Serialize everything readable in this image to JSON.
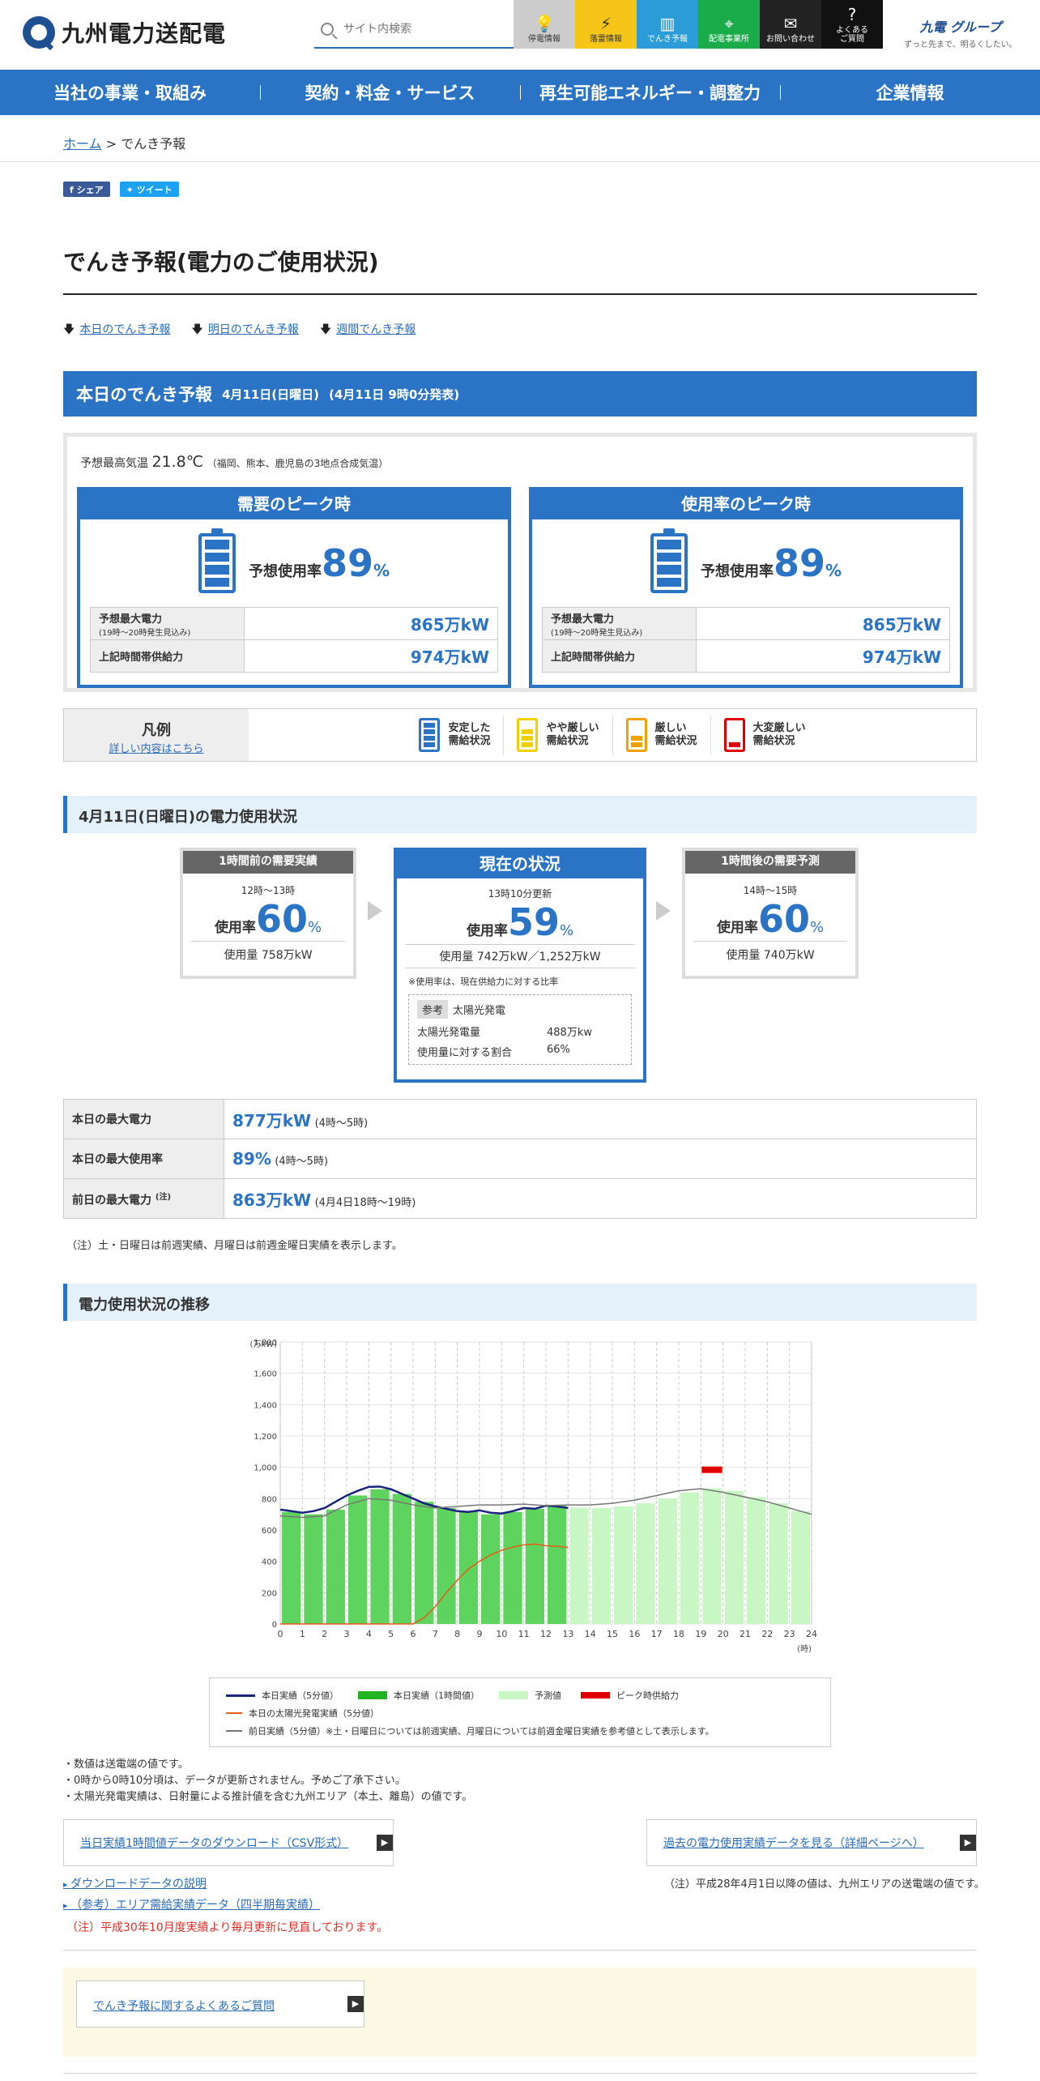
{
  "header": {
    "logo_text": "九州電力送配電",
    "search_placeholder": "サイト内検索",
    "top_nav": [
      {
        "label": "停電情報",
        "icon": "lightbulb-icon",
        "bg": "#cccccc",
        "fg": "#333333"
      },
      {
        "label": "落雷情報",
        "icon": "lightning-icon",
        "bg": "#f5c518",
        "fg": "#333333"
      },
      {
        "label": "でんき予報",
        "icon": "battery-icon",
        "bg": "#2b9cd8",
        "fg": "#ffffff"
      },
      {
        "label": "配電事業所",
        "icon": "map-pin-icon",
        "bg": "#1aab4b",
        "fg": "#ffffff"
      },
      {
        "label": "お問い合わせ",
        "icon": "mail-icon",
        "bg": "#222222",
        "fg": "#ffffff"
      },
      {
        "label": "よくある\nご質問",
        "icon": "question-icon",
        "bg": "#111111",
        "fg": "#ffffff"
      }
    ],
    "group_logo": "九電 グループ",
    "group_tagline": "ずっと先まで、明るくしたい。"
  },
  "main_nav": [
    "当社の事業・取組み",
    "契約・料金・サービス",
    "再生可能エネルギー・調整力",
    "企業情報"
  ],
  "breadcrumb": {
    "home": "ホーム",
    "sep": " > ",
    "current": "でんき予報"
  },
  "social": {
    "share": "シェア",
    "tweet": "ツイート"
  },
  "page_title": "でんき予報(電力のご使用状況)",
  "anchors": [
    "本日のでんき予報",
    "明日のでんき予報",
    "週間でんき予報"
  ],
  "today": {
    "title": "本日のでんき予報",
    "date": "4月11日(日曜日)",
    "published": "(4月11日 9時0分発表)",
    "temp_label": "予想最高気温",
    "temp_value": "21.8℃",
    "temp_note": "（福岡、熊本、鹿児島の3地点合成気温）",
    "peaks": [
      {
        "title": "需要のピーク時",
        "rate_label": "予想使用率",
        "rate": "89",
        "unit": "%",
        "max_label": "予想最大電力",
        "max_sub": "(19時～20時発生見込み)",
        "max_value": "865万kW",
        "supply_label": "上記時間帯供給力",
        "supply_value": "974万kW"
      },
      {
        "title": "使用率のピーク時",
        "rate_label": "予想使用率",
        "rate": "89",
        "unit": "%",
        "max_label": "予想最大電力",
        "max_sub": "(19時～20時発生見込み)",
        "max_value": "865万kW",
        "supply_label": "上記時間帯供給力",
        "supply_value": "974万kW"
      }
    ]
  },
  "legend": {
    "title": "凡例",
    "link": "詳しい内容はこちら",
    "items": [
      {
        "label1": "安定した",
        "label2": "需給状況",
        "color": "#2b74c5",
        "levels": 4
      },
      {
        "label1": "やや厳しい",
        "label2": "需給状況",
        "color": "#f0d000",
        "levels": 3
      },
      {
        "label1": "厳しい",
        "label2": "需給状況",
        "color": "#f0a000",
        "levels": 2
      },
      {
        "label1": "大変厳しい",
        "label2": "需給状況",
        "color": "#e00000",
        "levels": 1
      }
    ]
  },
  "usage": {
    "section_title": "4月11日(日曜日)の電力使用状況",
    "prev": {
      "head": "1時間前の需要実績",
      "time": "12時～13時",
      "rate_label": "使用率",
      "rate": "60",
      "unit": "%",
      "amount": "使用量 758万kW"
    },
    "current": {
      "head": "現在の状況",
      "time": "13時10分更新",
      "rate_label": "使用率",
      "rate": "59",
      "unit": "%",
      "amount": "使用量 742万kW／1,252万kW",
      "note": "※使用率は、現在供給力に対する比率",
      "ref_tag": "参考",
      "ref_title": "太陽光発電",
      "solar_label": "太陽光発電量",
      "solar_value": "488万kw",
      "share_label": "使用量に対する割合",
      "share_value": "66%"
    },
    "next": {
      "head": "1時間後の需要予測",
      "time": "14時～15時",
      "rate_label": "使用率",
      "rate": "60",
      "unit": "%",
      "amount": "使用量 740万kW"
    }
  },
  "max_table": [
    {
      "label": "本日の最大電力",
      "value": "877万kW",
      "sub": "(4時～5時)"
    },
    {
      "label": "本日の最大使用率",
      "value": "89%",
      "sub": "(4時～5時)"
    },
    {
      "label": "前日の最大電力",
      "sup": "(注)",
      "value": "863万kW",
      "sub": "(4月4日18時～19時)"
    }
  ],
  "max_note": "（注）土・日曜日は前週実績、月曜日は前週金曜日実績を表示します。",
  "trend_title": "電力使用状況の推移",
  "chart_data": {
    "type": "bar",
    "ylabel": "(万kW)",
    "xlabel": "(時)",
    "ylim": [
      0,
      1800
    ],
    "yticks": [
      0,
      200,
      400,
      600,
      800,
      1000,
      1200,
      1400,
      1600,
      1800
    ],
    "xticks": [
      0,
      1,
      2,
      3,
      4,
      5,
      6,
      7,
      8,
      9,
      10,
      11,
      12,
      13,
      14,
      15,
      16,
      17,
      18,
      19,
      20,
      21,
      22,
      23,
      24
    ],
    "grid": true,
    "series": [
      {
        "name": "本日実績（1時間値）",
        "type": "bar",
        "color": "#5ed35e",
        "hours": [
          0,
          1,
          2,
          3,
          4,
          5,
          6,
          7,
          8,
          9,
          10,
          11,
          12
        ],
        "values": [
          715,
          700,
          730,
          820,
          860,
          830,
          780,
          740,
          720,
          700,
          715,
          735,
          758
        ]
      },
      {
        "name": "予測値",
        "type": "bar",
        "color": "#c9f7c4",
        "hours": [
          13,
          14,
          15,
          16,
          17,
          18,
          19,
          20,
          21,
          22,
          23
        ],
        "values": [
          742,
          740,
          750,
          770,
          800,
          840,
          865,
          850,
          810,
          770,
          720
        ]
      },
      {
        "name": "本日実績（5分値）",
        "type": "line",
        "color": "#1a237e",
        "x": [
          0,
          0.5,
          1,
          1.5,
          2,
          2.5,
          3,
          3.5,
          4,
          4.5,
          5,
          5.5,
          6,
          6.5,
          7,
          7.5,
          8,
          8.5,
          9,
          9.5,
          10,
          10.5,
          11,
          11.5,
          12,
          12.5,
          13
        ],
        "values": [
          730,
          720,
          710,
          720,
          740,
          780,
          820,
          850,
          875,
          877,
          860,
          830,
          800,
          770,
          750,
          735,
          720,
          715,
          725,
          710,
          705,
          720,
          740,
          735,
          755,
          750,
          740
        ]
      },
      {
        "name": "本日の太陽光発電実績（5分値）",
        "type": "line",
        "color": "#e65c19",
        "x": [
          0,
          6,
          6.5,
          7,
          7.5,
          8,
          8.5,
          9,
          9.5,
          10,
          10.5,
          11,
          11.5,
          12,
          12.5,
          13
        ],
        "values": [
          0,
          0,
          40,
          110,
          200,
          280,
          350,
          400,
          440,
          470,
          490,
          505,
          510,
          500,
          495,
          488
        ]
      },
      {
        "name": "前日実績（5分値）",
        "type": "line",
        "color": "#777777",
        "x": [
          0,
          1,
          2,
          3,
          4,
          5,
          6,
          7,
          8,
          9,
          10,
          11,
          12,
          13,
          14,
          15,
          16,
          17,
          18,
          19,
          20,
          21,
          22,
          23,
          24
        ],
        "values": [
          690,
          680,
          690,
          760,
          800,
          790,
          760,
          740,
          750,
          760,
          760,
          765,
          755,
          760,
          760,
          770,
          790,
          820,
          850,
          863,
          840,
          810,
          780,
          740,
          700
        ]
      },
      {
        "name": "ピーク時供給力",
        "type": "marker",
        "color": "#e00000",
        "x": [
          19
        ],
        "values": [
          974
        ]
      }
    ]
  },
  "chart_legend": {
    "row1": [
      "本日実績（5分値）",
      "本日実績（1時間値）",
      "予測値",
      "ピーク時供給力"
    ],
    "row2": "本日の太陽光発電実績（5分値）",
    "row3": "前日実績（5分値）※土・日曜日については前週実績、月曜日については前週金曜日実績を参考値として表示します。"
  },
  "chart_notes": [
    "・数値は送電端の値です。",
    "・0時から0時10分頃は、データが更新されません。予めご了承下さい。",
    "・太陽光発電実績は、日射量による推計値を含む九州エリア（本土、離島）の値です。"
  ],
  "links": {
    "csv": "当日実績1時間値データのダウンロード（CSV形式）",
    "past": "過去の電力使用実績データを見る（詳細ページへ）",
    "past_note": "（注）平成28年4月1日以降の値は、九州エリアの送電端の値です。",
    "explain": "ダウンロードデータの説明",
    "area": "（参考）エリア需給実績データ（四半期毎実績）",
    "red_note": "（注）平成30年10月度実績より毎月更新に見直しております。",
    "faq": "でんき予報に関するよくあるご質問"
  }
}
